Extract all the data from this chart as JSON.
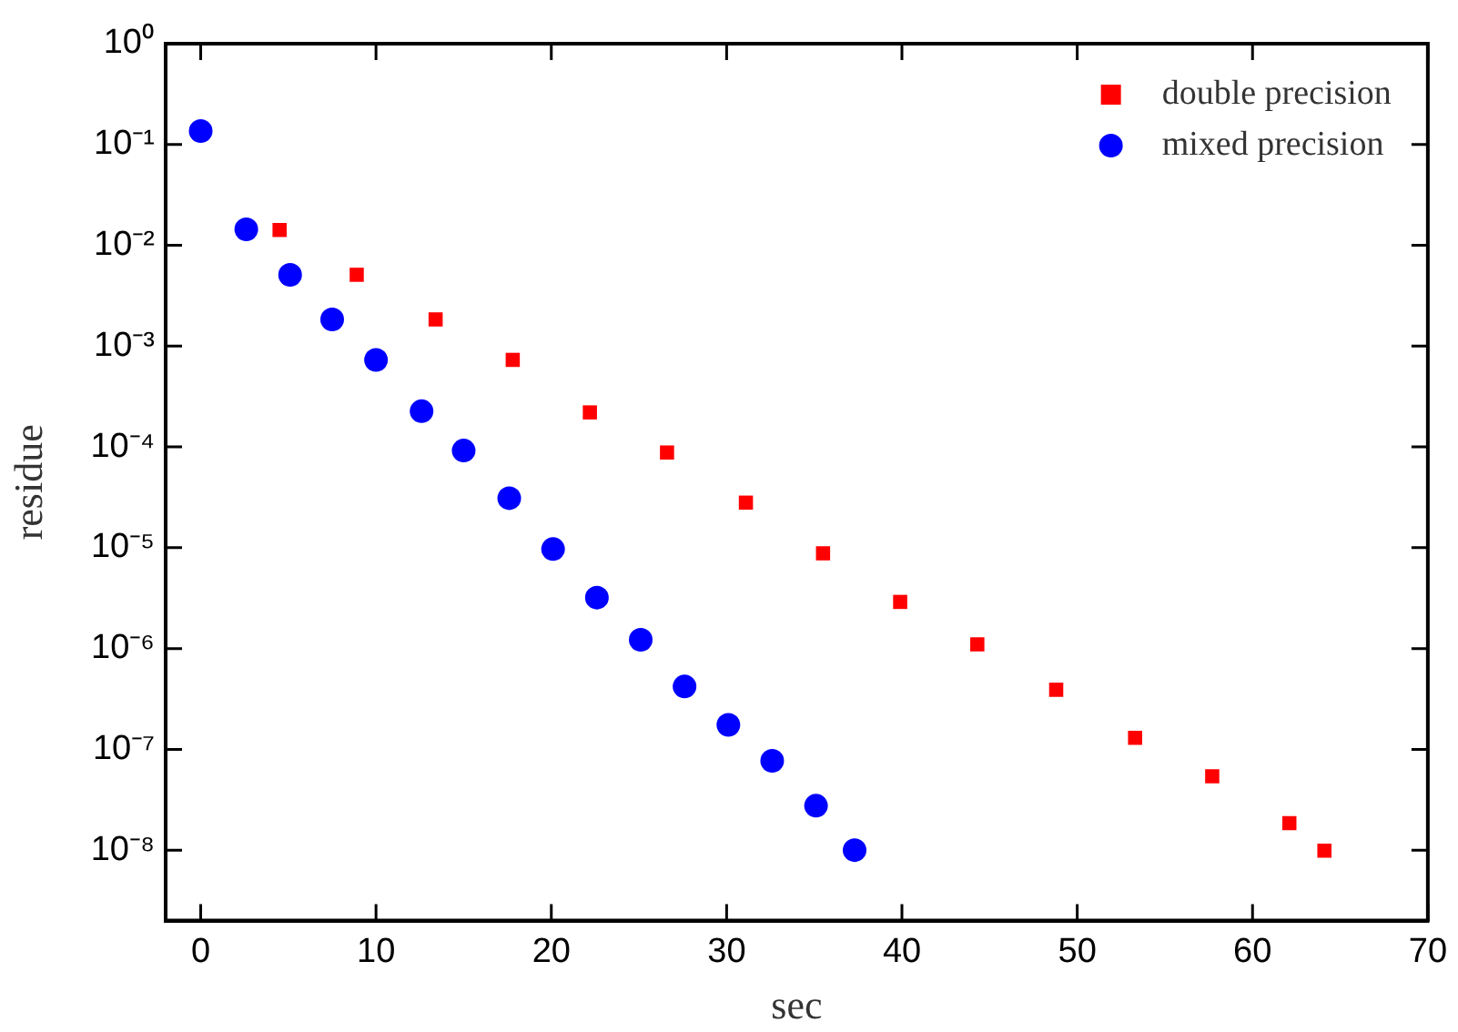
{
  "chart_data": {
    "type": "scatter",
    "xlabel": "sec",
    "ylabel": "residue",
    "log": "y",
    "grid": false,
    "legend": "top right",
    "xlim": [
      -2,
      70
    ],
    "xticks": [
      0,
      10,
      20,
      30,
      40,
      50,
      60,
      70
    ],
    "ylim": [
      2e-09,
      1
    ],
    "yticks": [
      {
        "value": 1e-08,
        "label": "10⁻⁸"
      },
      {
        "value": 1e-07,
        "label": "10⁻⁷"
      },
      {
        "value": 1e-06,
        "label": "10⁻⁶"
      },
      {
        "value": 1e-05,
        "label": "10⁻⁵"
      },
      {
        "value": 0.0001,
        "label": "10⁻⁴"
      },
      {
        "value": 0.001,
        "label": "10⁻³"
      },
      {
        "value": 0.01,
        "label": "10⁻²"
      },
      {
        "value": 0.1,
        "label": "10⁻¹"
      },
      {
        "value": 1,
        "label": "10⁰"
      }
    ],
    "series": [
      {
        "name": "double precision",
        "color": "#ff0000",
        "marker": "square",
        "x": [
          4.5,
          8.9,
          13.4,
          17.8,
          22.2,
          26.6,
          31.1,
          35.5,
          39.9,
          44.3,
          48.8,
          53.3,
          57.7,
          62.1,
          64.1
        ],
        "values": [
          0.0142,
          0.0051,
          0.00184,
          0.00073,
          0.00022,
          8.8e-05,
          2.8e-05,
          8.8e-06,
          2.9e-06,
          1.1e-06,
          3.9e-07,
          1.3e-07,
          5.4e-08,
          1.85e-08,
          9.9e-09
        ]
      },
      {
        "name": "mixed precision",
        "color": "#0000ff",
        "marker": "circle",
        "x": [
          0,
          2.6,
          5.1,
          7.5,
          10.0,
          12.6,
          15.0,
          17.6,
          20.1,
          22.6,
          25.1,
          27.6,
          30.1,
          32.6,
          35.1,
          37.3
        ],
        "values": [
          0.136,
          0.0144,
          0.0051,
          0.00184,
          0.00073,
          0.000226,
          9.2e-05,
          3.1e-05,
          9.7e-06,
          3.2e-06,
          1.22e-06,
          4.2e-07,
          1.75e-07,
          7.7e-08,
          2.76e-08,
          1e-08
        ]
      }
    ]
  }
}
